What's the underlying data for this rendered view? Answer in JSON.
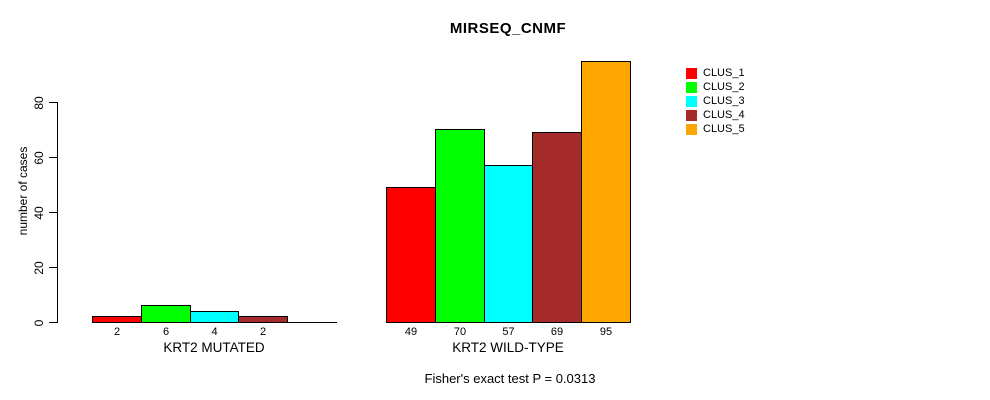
{
  "chart_data": {
    "type": "bar",
    "title": "MIRSEQ_CNMF",
    "ylabel": "number of cases",
    "xlabel": "",
    "ylim": [
      0,
      95
    ],
    "yticks": [
      0,
      20,
      40,
      60,
      80
    ],
    "grid": false,
    "legend_position": "right-outside",
    "series": [
      "CLUS_1",
      "CLUS_2",
      "CLUS_3",
      "CLUS_4",
      "CLUS_5"
    ],
    "series_colors": [
      "#FF0000",
      "#00FF00",
      "#00FFFF",
      "#A52A2A",
      "#FFA500"
    ],
    "groups": [
      {
        "label": "KRT2 MUTATED",
        "values": [
          2,
          6,
          4,
          2,
          0
        ],
        "bar_labels": [
          "2",
          "6",
          "4",
          "2",
          ""
        ]
      },
      {
        "label": "KRT2 WILD-TYPE",
        "values": [
          49,
          70,
          57,
          69,
          95
        ],
        "bar_labels": [
          "49",
          "70",
          "57",
          "69",
          "95"
        ]
      }
    ],
    "annotation": "Fisher's exact test P = 0.0313"
  },
  "legend": {
    "items": [
      {
        "label": "CLUS_1",
        "color": "#FF0000"
      },
      {
        "label": "CLUS_2",
        "color": "#00FF00"
      },
      {
        "label": "CLUS_3",
        "color": "#00FFFF"
      },
      {
        "label": "CLUS_4",
        "color": "#A52A2A"
      },
      {
        "label": "CLUS_5",
        "color": "#FFA500"
      }
    ]
  }
}
